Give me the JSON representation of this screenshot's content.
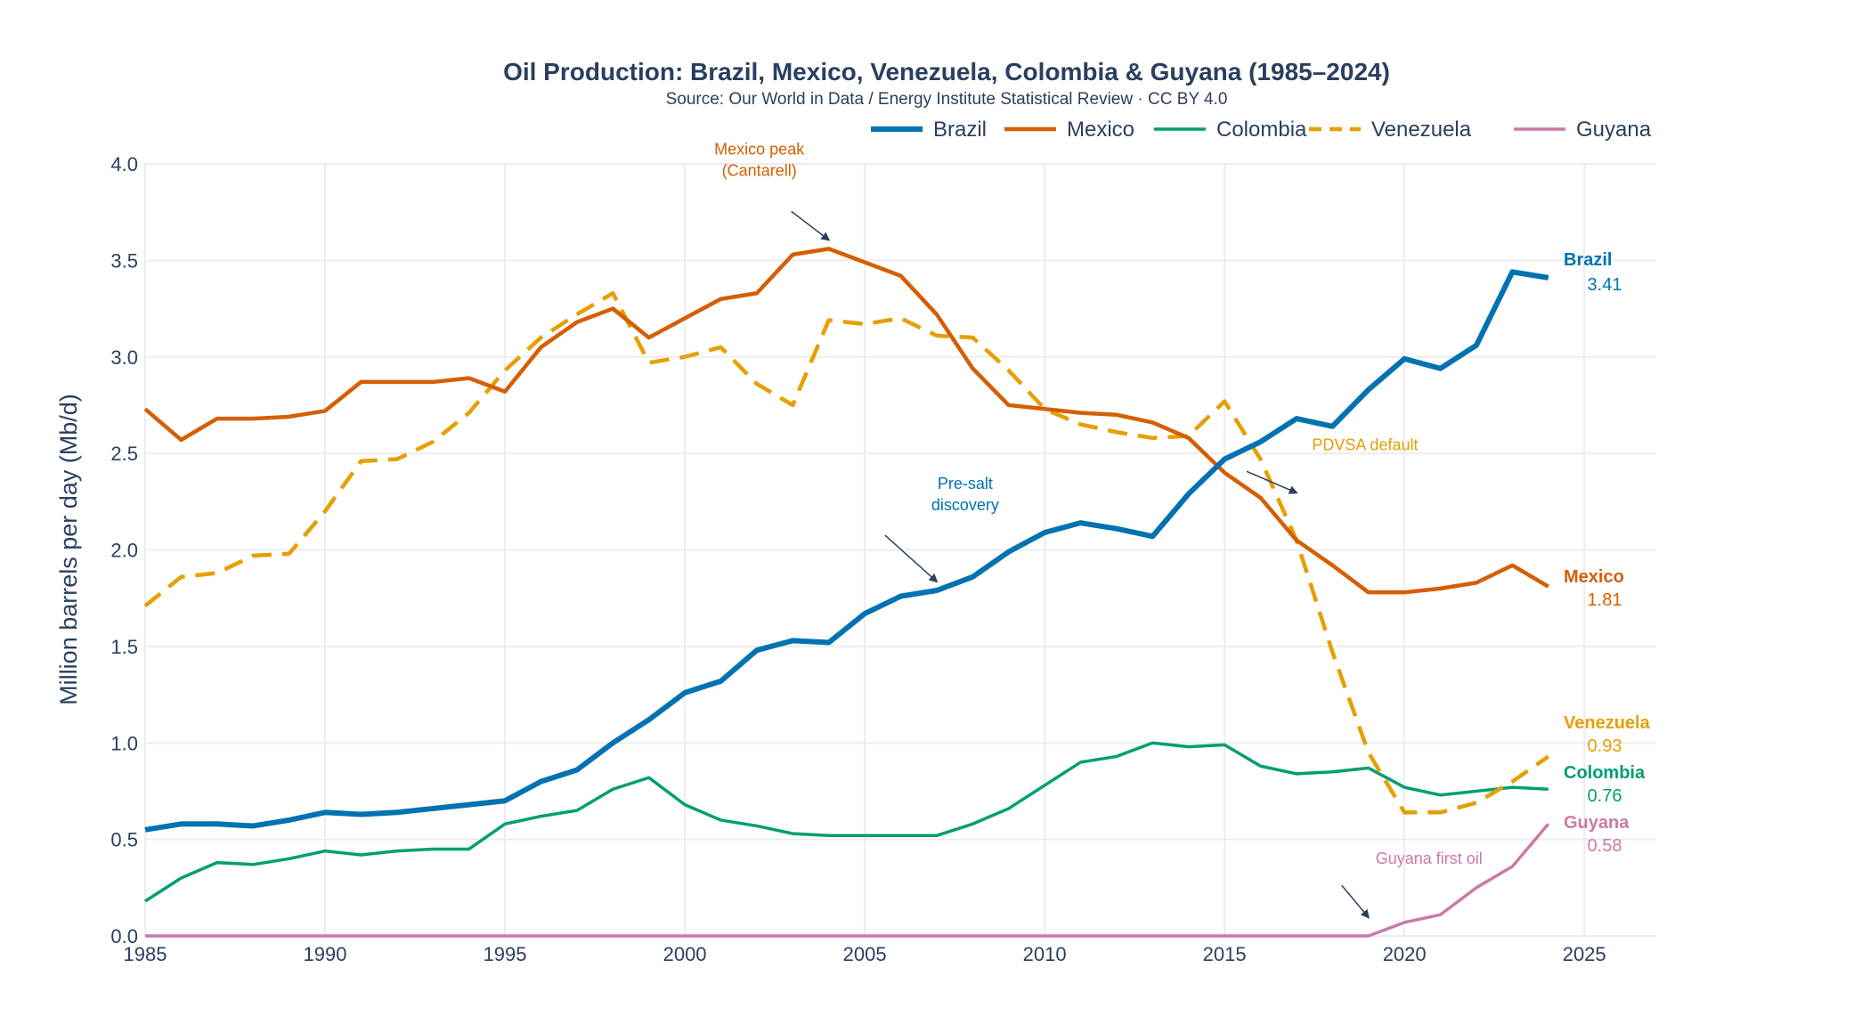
{
  "chart_data": {
    "type": "line",
    "title": "Oil Production: Brazil, Mexico, Venezuela, Colombia & Guyana (1985–2024)",
    "subtitle": "Source: Our World in Data / Energy Institute Statistical Review · CC BY 4.0",
    "xlabel": "",
    "ylabel": "Million barrels per day (Mb/d)",
    "xlim": [
      1985,
      2027
    ],
    "ylim": [
      0,
      4.0
    ],
    "xticks": [
      1985,
      1990,
      1995,
      2000,
      2005,
      2010,
      2015,
      2020,
      2025
    ],
    "yticks": [
      "0.0",
      "0.5",
      "1.0",
      "1.5",
      "2.0",
      "2.5",
      "3.0",
      "3.5",
      "4.0"
    ],
    "grid": true,
    "legend_placement": "top-right",
    "x": [
      1985,
      1986,
      1987,
      1988,
      1989,
      1990,
      1991,
      1992,
      1993,
      1994,
      1995,
      1996,
      1997,
      1998,
      1999,
      2000,
      2001,
      2002,
      2003,
      2004,
      2005,
      2006,
      2007,
      2008,
      2009,
      2010,
      2011,
      2012,
      2013,
      2014,
      2015,
      2016,
      2017,
      2018,
      2019,
      2020,
      2021,
      2022,
      2023,
      2024
    ],
    "series": [
      {
        "name": "Brazil",
        "color": "#0072b2",
        "dash": "solid",
        "width": "thick",
        "end_label": "Brazil",
        "end_value": "3.41",
        "values": [
          0.55,
          0.58,
          0.58,
          0.57,
          0.6,
          0.64,
          0.63,
          0.64,
          0.66,
          0.68,
          0.7,
          0.8,
          0.86,
          1.0,
          1.12,
          1.26,
          1.32,
          1.48,
          1.53,
          1.52,
          1.67,
          1.76,
          1.79,
          1.86,
          1.99,
          2.09,
          2.14,
          2.11,
          2.07,
          2.29,
          2.47,
          2.56,
          2.68,
          2.64,
          2.83,
          2.99,
          2.94,
          3.06,
          3.44,
          3.41
        ]
      },
      {
        "name": "Mexico",
        "color": "#d55e00",
        "dash": "solid",
        "width": "medium",
        "end_label": "Mexico",
        "end_value": "1.81",
        "values": [
          2.73,
          2.57,
          2.68,
          2.68,
          2.69,
          2.72,
          2.87,
          2.87,
          2.87,
          2.89,
          2.82,
          3.05,
          3.18,
          3.25,
          3.1,
          3.2,
          3.3,
          3.33,
          3.53,
          3.56,
          3.49,
          3.42,
          3.22,
          2.94,
          2.75,
          2.73,
          2.71,
          2.7,
          2.66,
          2.58,
          2.4,
          2.27,
          2.05,
          1.92,
          1.78,
          1.78,
          1.8,
          1.83,
          1.92,
          1.81
        ]
      },
      {
        "name": "Colombia",
        "color": "#009e73",
        "dash": "solid",
        "width": "thin",
        "end_label": "Colombia",
        "end_value": "0.76",
        "values": [
          0.18,
          0.3,
          0.38,
          0.37,
          0.4,
          0.44,
          0.42,
          0.44,
          0.45,
          0.45,
          0.58,
          0.62,
          0.65,
          0.76,
          0.82,
          0.68,
          0.6,
          0.57,
          0.53,
          0.52,
          0.52,
          0.52,
          0.52,
          0.58,
          0.66,
          0.78,
          0.9,
          0.93,
          1.0,
          0.98,
          0.99,
          0.88,
          0.84,
          0.85,
          0.87,
          0.77,
          0.73,
          0.75,
          0.77,
          0.76
        ]
      },
      {
        "name": "Venezuela",
        "color": "#e69f00",
        "dash": "dashed",
        "width": "medium",
        "end_label": "Venezuela",
        "end_value": "0.93",
        "values": [
          1.71,
          1.86,
          1.88,
          1.97,
          1.98,
          2.2,
          2.46,
          2.47,
          2.56,
          2.71,
          2.93,
          3.1,
          3.22,
          3.33,
          2.97,
          3.0,
          3.05,
          2.86,
          2.75,
          3.19,
          3.17,
          3.2,
          3.11,
          3.1,
          2.93,
          2.73,
          2.65,
          2.61,
          2.58,
          2.59,
          2.77,
          2.47,
          2.05,
          1.47,
          0.95,
          0.64,
          0.64,
          0.69,
          0.8,
          0.93
        ]
      },
      {
        "name": "Guyana",
        "color": "#cc79a7",
        "dash": "solid",
        "width": "thin",
        "end_label": "Guyana",
        "end_value": "0.58",
        "values": [
          0,
          0,
          0,
          0,
          0,
          0,
          0,
          0,
          0,
          0,
          0,
          0,
          0,
          0,
          0,
          0,
          0,
          0,
          0,
          0,
          0,
          0,
          0,
          0,
          0,
          0,
          0,
          0,
          0,
          0,
          0,
          0,
          0,
          0,
          0,
          0.07,
          0.11,
          0.25,
          0.36,
          0.58
        ]
      }
    ],
    "annotations": [
      {
        "lines": [
          "Mexico peak",
          "(Cantarell)"
        ],
        "color": "#d55e00",
        "x": 2004,
        "y": 3.56
      },
      {
        "lines": [
          "Pre-salt",
          "discovery"
        ],
        "color": "#0072b2",
        "x": 2007,
        "y": 1.79
      },
      {
        "lines": [
          "PDVSA default"
        ],
        "color": "#e69f00",
        "x": 2017,
        "y": 2.25
      },
      {
        "lines": [
          "Guyana first oil"
        ],
        "color": "#cc79a7",
        "x": 2019,
        "y": 0.05
      }
    ],
    "text_color": "#2a3f5f",
    "grid_color": "#ebedf0"
  }
}
